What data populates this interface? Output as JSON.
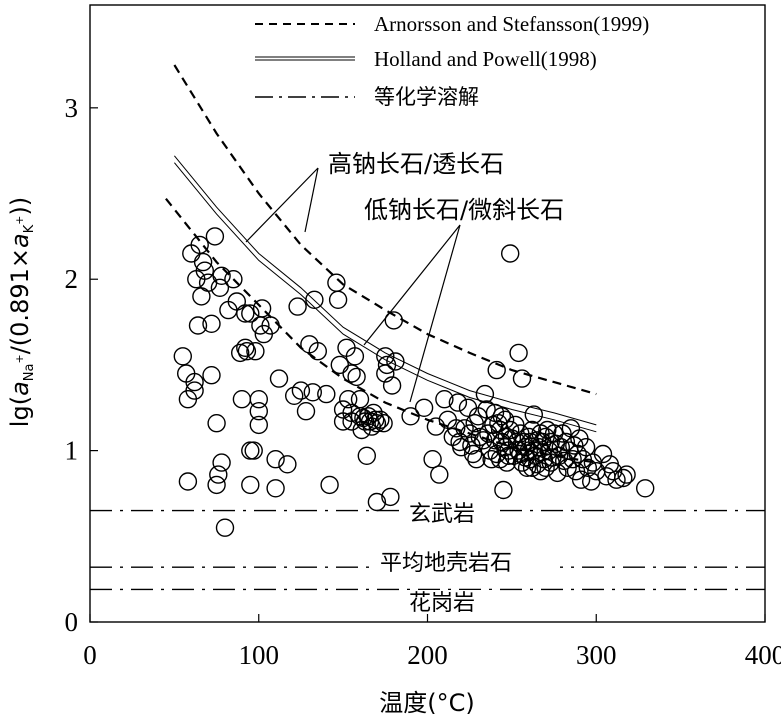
{
  "chart_data": {
    "type": "scatter",
    "xlabel": "温度(°C)",
    "ylabel": "lg(aNa+/(0.891×aK+))",
    "xlim": [
      0,
      400
    ],
    "ylim": [
      0,
      3.6
    ],
    "xticks": [
      0,
      100,
      200,
      300,
      400
    ],
    "yticks": [
      0,
      1,
      2,
      3
    ],
    "grid": false,
    "legend_position": "top-right",
    "legend": [
      {
        "label": "Arnorsson and Stefansson(1999)",
        "style": "dashed"
      },
      {
        "label": "Holland and Powell(1998)",
        "style": "double-solid"
      },
      {
        "label": "等化学溶解",
        "style": "dash-dot"
      }
    ],
    "curves": [
      {
        "name": "arnorsson-high-albite",
        "style": "dashed",
        "x": [
          50,
          75,
          100,
          125,
          150,
          175,
          200,
          225,
          250,
          275,
          300
        ],
        "y": [
          3.25,
          2.85,
          2.5,
          2.2,
          1.97,
          1.82,
          1.68,
          1.57,
          1.47,
          1.4,
          1.33
        ]
      },
      {
        "name": "arnorsson-low-albite",
        "style": "dashed",
        "x": [
          45,
          75,
          100,
          125,
          150,
          175,
          200,
          225,
          250,
          275,
          300
        ],
        "y": [
          2.47,
          2.1,
          1.85,
          1.6,
          1.42,
          1.28,
          1.18,
          1.1,
          1.02,
          0.97,
          0.93
        ]
      },
      {
        "name": "holland-high-albite",
        "style": "double-solid",
        "x": [
          50,
          75,
          100,
          125,
          150,
          175,
          200,
          225,
          250,
          275,
          300
        ],
        "y": [
          2.72,
          2.42,
          2.15,
          1.95,
          1.72,
          1.57,
          1.45,
          1.35,
          1.28,
          1.22,
          1.15
        ]
      },
      {
        "name": "holland-low-albite",
        "style": "double-solid",
        "x": [
          50,
          75,
          100,
          125,
          150,
          175,
          200,
          225,
          250,
          275,
          300
        ],
        "y": [
          2.68,
          2.38,
          2.11,
          1.91,
          1.68,
          1.53,
          1.41,
          1.31,
          1.24,
          1.18,
          1.11
        ]
      }
    ],
    "reference_lines": [
      {
        "label": "玄武岩",
        "y": 0.65,
        "style": "dash-dot"
      },
      {
        "label": "平均地壳岩石",
        "y": 0.32,
        "style": "dash-dot"
      },
      {
        "label": "花岗岩",
        "y": 0.19,
        "style": "dash-dot"
      }
    ],
    "annotations": [
      {
        "text": "高钠长石/透长石"
      },
      {
        "text": "低钠长石/微斜长石"
      }
    ],
    "points": [
      [
        55,
        1.55
      ],
      [
        57,
        1.45
      ],
      [
        58,
        1.3
      ],
      [
        58,
        0.82
      ],
      [
        60,
        2.15
      ],
      [
        62,
        1.35
      ],
      [
        62,
        1.4
      ],
      [
        63,
        2.0
      ],
      [
        64,
        1.73
      ],
      [
        65,
        2.2
      ],
      [
        66,
        1.9
      ],
      [
        67,
        2.1
      ],
      [
        68,
        2.05
      ],
      [
        70,
        1.98
      ],
      [
        72,
        1.74
      ],
      [
        72,
        1.44
      ],
      [
        74,
        2.25
      ],
      [
        75,
        1.16
      ],
      [
        75,
        0.8
      ],
      [
        76,
        0.86
      ],
      [
        77,
        1.95
      ],
      [
        78,
        2.02
      ],
      [
        78,
        0.93
      ],
      [
        80,
        0.55
      ],
      [
        82,
        1.82
      ],
      [
        85,
        2.0
      ],
      [
        87,
        1.87
      ],
      [
        89,
        1.57
      ],
      [
        90,
        1.3
      ],
      [
        92,
        1.8
      ],
      [
        92,
        1.6
      ],
      [
        93,
        1.58
      ],
      [
        95,
        1.8
      ],
      [
        95,
        1.0
      ],
      [
        95,
        0.8
      ],
      [
        97,
        1.0
      ],
      [
        98,
        1.58
      ],
      [
        100,
        1.3
      ],
      [
        100,
        1.23
      ],
      [
        100,
        1.15
      ],
      [
        101,
        1.73
      ],
      [
        102,
        1.83
      ],
      [
        103,
        1.68
      ],
      [
        107,
        1.73
      ],
      [
        110,
        0.95
      ],
      [
        110,
        0.78
      ],
      [
        112,
        1.42
      ],
      [
        117,
        0.92
      ],
      [
        121,
        1.32
      ],
      [
        123,
        1.84
      ],
      [
        125,
        1.35
      ],
      [
        128,
        1.23
      ],
      [
        130,
        1.62
      ],
      [
        132,
        1.34
      ],
      [
        133,
        1.88
      ],
      [
        135,
        1.58
      ],
      [
        140,
        1.33
      ],
      [
        142,
        0.8
      ],
      [
        146,
        1.98
      ],
      [
        147,
        1.88
      ],
      [
        148,
        1.5
      ],
      [
        150,
        1.24
      ],
      [
        150,
        1.17
      ],
      [
        152,
        1.6
      ],
      [
        153,
        1.3
      ],
      [
        155,
        1.45
      ],
      [
        155,
        1.22
      ],
      [
        155,
        1.17
      ],
      [
        157,
        1.55
      ],
      [
        158,
        1.43
      ],
      [
        160,
        1.3
      ],
      [
        160,
        1.2
      ],
      [
        161,
        1.12
      ],
      [
        162,
        1.19
      ],
      [
        163,
        1.17
      ],
      [
        164,
        0.97
      ],
      [
        165,
        1.2
      ],
      [
        166,
        1.17
      ],
      [
        167,
        1.14
      ],
      [
        168,
        1.22
      ],
      [
        169,
        1.18
      ],
      [
        170,
        1.16
      ],
      [
        170,
        0.7
      ],
      [
        172,
        1.18
      ],
      [
        174,
        1.16
      ],
      [
        175,
        1.55
      ],
      [
        175,
        1.45
      ],
      [
        176,
        1.5
      ],
      [
        178,
        0.73
      ],
      [
        179,
        1.38
      ],
      [
        180,
        1.76
      ],
      [
        181,
        1.52
      ],
      [
        190,
        1.2
      ],
      [
        198,
        1.25
      ],
      [
        203,
        0.95
      ],
      [
        205,
        1.14
      ],
      [
        207,
        0.86
      ],
      [
        210,
        1.3
      ],
      [
        212,
        1.18
      ],
      [
        215,
        1.08
      ],
      [
        217,
        1.13
      ],
      [
        218,
        1.28
      ],
      [
        219,
        1.05
      ],
      [
        220,
        1.02
      ],
      [
        222,
        1.13
      ],
      [
        224,
        1.25
      ],
      [
        225,
        1.1
      ],
      [
        226,
        1.03
      ],
      [
        227,
        0.98
      ],
      [
        228,
        1.16
      ],
      [
        229,
        0.95
      ],
      [
        230,
        1.2
      ],
      [
        231,
        1.08
      ],
      [
        233,
        1.06
      ],
      [
        234,
        1.33
      ],
      [
        235,
        1.24
      ],
      [
        236,
        1.1
      ],
      [
        237,
        1.0
      ],
      [
        238,
        0.95
      ],
      [
        239,
        1.15
      ],
      [
        240,
        1.22
      ],
      [
        240,
        1.06
      ],
      [
        241,
        1.47
      ],
      [
        241,
        0.98
      ],
      [
        242,
        1.16
      ],
      [
        243,
        1.12
      ],
      [
        243,
        0.95
      ],
      [
        244,
        1.2
      ],
      [
        244,
        1.05
      ],
      [
        245,
        0.77
      ],
      [
        246,
        1.18
      ],
      [
        246,
        1.02
      ],
      [
        247,
        1.08
      ],
      [
        247,
        0.93
      ],
      [
        248,
        1.0
      ],
      [
        248,
        0.97
      ],
      [
        249,
        1.12
      ],
      [
        249,
        2.15
      ],
      [
        250,
        1.07
      ],
      [
        251,
        0.97
      ],
      [
        252,
        1.15
      ],
      [
        253,
        1.05
      ],
      [
        254,
        1.57
      ],
      [
        254,
        1.0
      ],
      [
        255,
        1.1
      ],
      [
        255,
        0.98
      ],
      [
        256,
        1.42
      ],
      [
        256,
        0.93
      ],
      [
        257,
        1.05
      ],
      [
        258,
        1.02
      ],
      [
        258,
        0.96
      ],
      [
        259,
        0.9
      ],
      [
        260,
        1.08
      ],
      [
        260,
        1.0
      ],
      [
        261,
        1.05
      ],
      [
        261,
        0.95
      ],
      [
        262,
        1.12
      ],
      [
        262,
        0.9
      ],
      [
        263,
        1.21
      ],
      [
        263,
        1.0
      ],
      [
        264,
        0.97
      ],
      [
        265,
        1.06
      ],
      [
        265,
        0.92
      ],
      [
        266,
        1.02
      ],
      [
        267,
        1.1
      ],
      [
        267,
        0.88
      ],
      [
        268,
        1.05
      ],
      [
        268,
        0.99
      ],
      [
        269,
        0.95
      ],
      [
        270,
        1.08
      ],
      [
        270,
        0.9
      ],
      [
        271,
        1.12
      ],
      [
        272,
        1.0
      ],
      [
        273,
        1.05
      ],
      [
        273,
        0.93
      ],
      [
        274,
        0.96
      ],
      [
        275,
        1.1
      ],
      [
        276,
        1.04
      ],
      [
        277,
        0.87
      ],
      [
        278,
        0.97
      ],
      [
        279,
        1.02
      ],
      [
        280,
        1.1
      ],
      [
        281,
        0.94
      ],
      [
        282,
        1.05
      ],
      [
        283,
        0.9
      ],
      [
        284,
        1.0
      ],
      [
        285,
        1.13
      ],
      [
        286,
        0.95
      ],
      [
        287,
        1.03
      ],
      [
        288,
        0.88
      ],
      [
        289,
        0.98
      ],
      [
        290,
        1.07
      ],
      [
        291,
        0.83
      ],
      [
        292,
        0.95
      ],
      [
        294,
        1.02
      ],
      [
        295,
        0.9
      ],
      [
        297,
        0.82
      ],
      [
        298,
        0.93
      ],
      [
        300,
        0.88
      ],
      [
        304,
        0.98
      ],
      [
        306,
        0.85
      ],
      [
        308,
        0.92
      ],
      [
        310,
        0.88
      ],
      [
        312,
        0.83
      ],
      [
        316,
        0.84
      ],
      [
        318,
        0.86
      ],
      [
        329,
        0.78
      ]
    ]
  }
}
